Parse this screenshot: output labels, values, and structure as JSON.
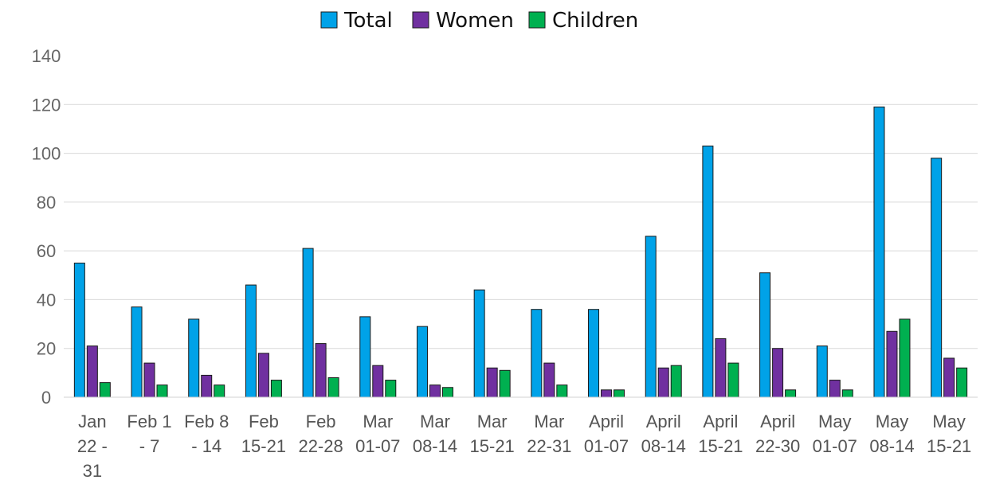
{
  "chart_data": {
    "type": "bar",
    "title": "",
    "xlabel": "",
    "ylabel": "",
    "ylim": [
      0,
      140
    ],
    "yticks": [
      0,
      20,
      40,
      60,
      80,
      100,
      120,
      140
    ],
    "grid": true,
    "legend_position": "top-center",
    "categories": [
      [
        "Jan",
        "22 -",
        "31"
      ],
      [
        "Feb 1",
        "- 7"
      ],
      [
        "Feb 8",
        "- 14"
      ],
      [
        "Feb",
        "15-21"
      ],
      [
        "Feb",
        "22-28"
      ],
      [
        "Mar",
        "01-07"
      ],
      [
        "Mar",
        "08-14"
      ],
      [
        "Mar",
        "15-21"
      ],
      [
        "Mar",
        "22-31"
      ],
      [
        "April",
        "01-07"
      ],
      [
        "April",
        "08-14"
      ],
      [
        "April",
        "15-21"
      ],
      [
        "April",
        "22-30"
      ],
      [
        "May",
        "01-07"
      ],
      [
        "May",
        "08-14"
      ],
      [
        "May",
        "15-21"
      ]
    ],
    "series": [
      {
        "name": "Total",
        "color": "#00a2e8",
        "values": [
          55,
          37,
          32,
          46,
          61,
          33,
          29,
          44,
          36,
          36,
          66,
          103,
          51,
          21,
          119,
          98
        ]
      },
      {
        "name": "Women",
        "color": "#7030a0",
        "values": [
          21,
          14,
          9,
          18,
          22,
          13,
          5,
          12,
          14,
          3,
          12,
          24,
          20,
          7,
          27,
          16
        ]
      },
      {
        "name": "Children",
        "color": "#00b050",
        "values": [
          6,
          5,
          5,
          7,
          8,
          7,
          4,
          11,
          5,
          3,
          13,
          14,
          3,
          3,
          32,
          12
        ]
      }
    ]
  }
}
